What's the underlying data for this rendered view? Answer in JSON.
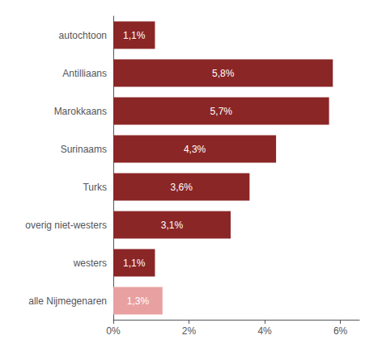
{
  "chart_data": {
    "type": "bar",
    "orientation": "horizontal",
    "categories": [
      "autochtoon",
      "Antilliaans",
      "Marokkaans",
      "Surinaams",
      "Turks",
      "overig niet-westers",
      "westers",
      "alle Nijmegenaren"
    ],
    "values": [
      1.1,
      5.8,
      5.7,
      4.3,
      3.6,
      3.1,
      1.1,
      1.3
    ],
    "value_labels": [
      "1,1%",
      "5,8%",
      "5,7%",
      "4,3%",
      "3,6%",
      "3,1%",
      "1,1%",
      "1,3%"
    ],
    "colors": [
      "#8b2626",
      "#8b2626",
      "#8b2626",
      "#8b2626",
      "#8b2626",
      "#8b2626",
      "#8b2626",
      "#e8a0a0"
    ],
    "xlim": [
      0,
      6.5
    ],
    "xticks": [
      {
        "value": 0,
        "label": "0%"
      },
      {
        "value": 2,
        "label": "2%"
      },
      {
        "value": 4,
        "label": "4%"
      },
      {
        "value": 6,
        "label": "6%"
      }
    ],
    "grid": false,
    "data_labels": true
  }
}
